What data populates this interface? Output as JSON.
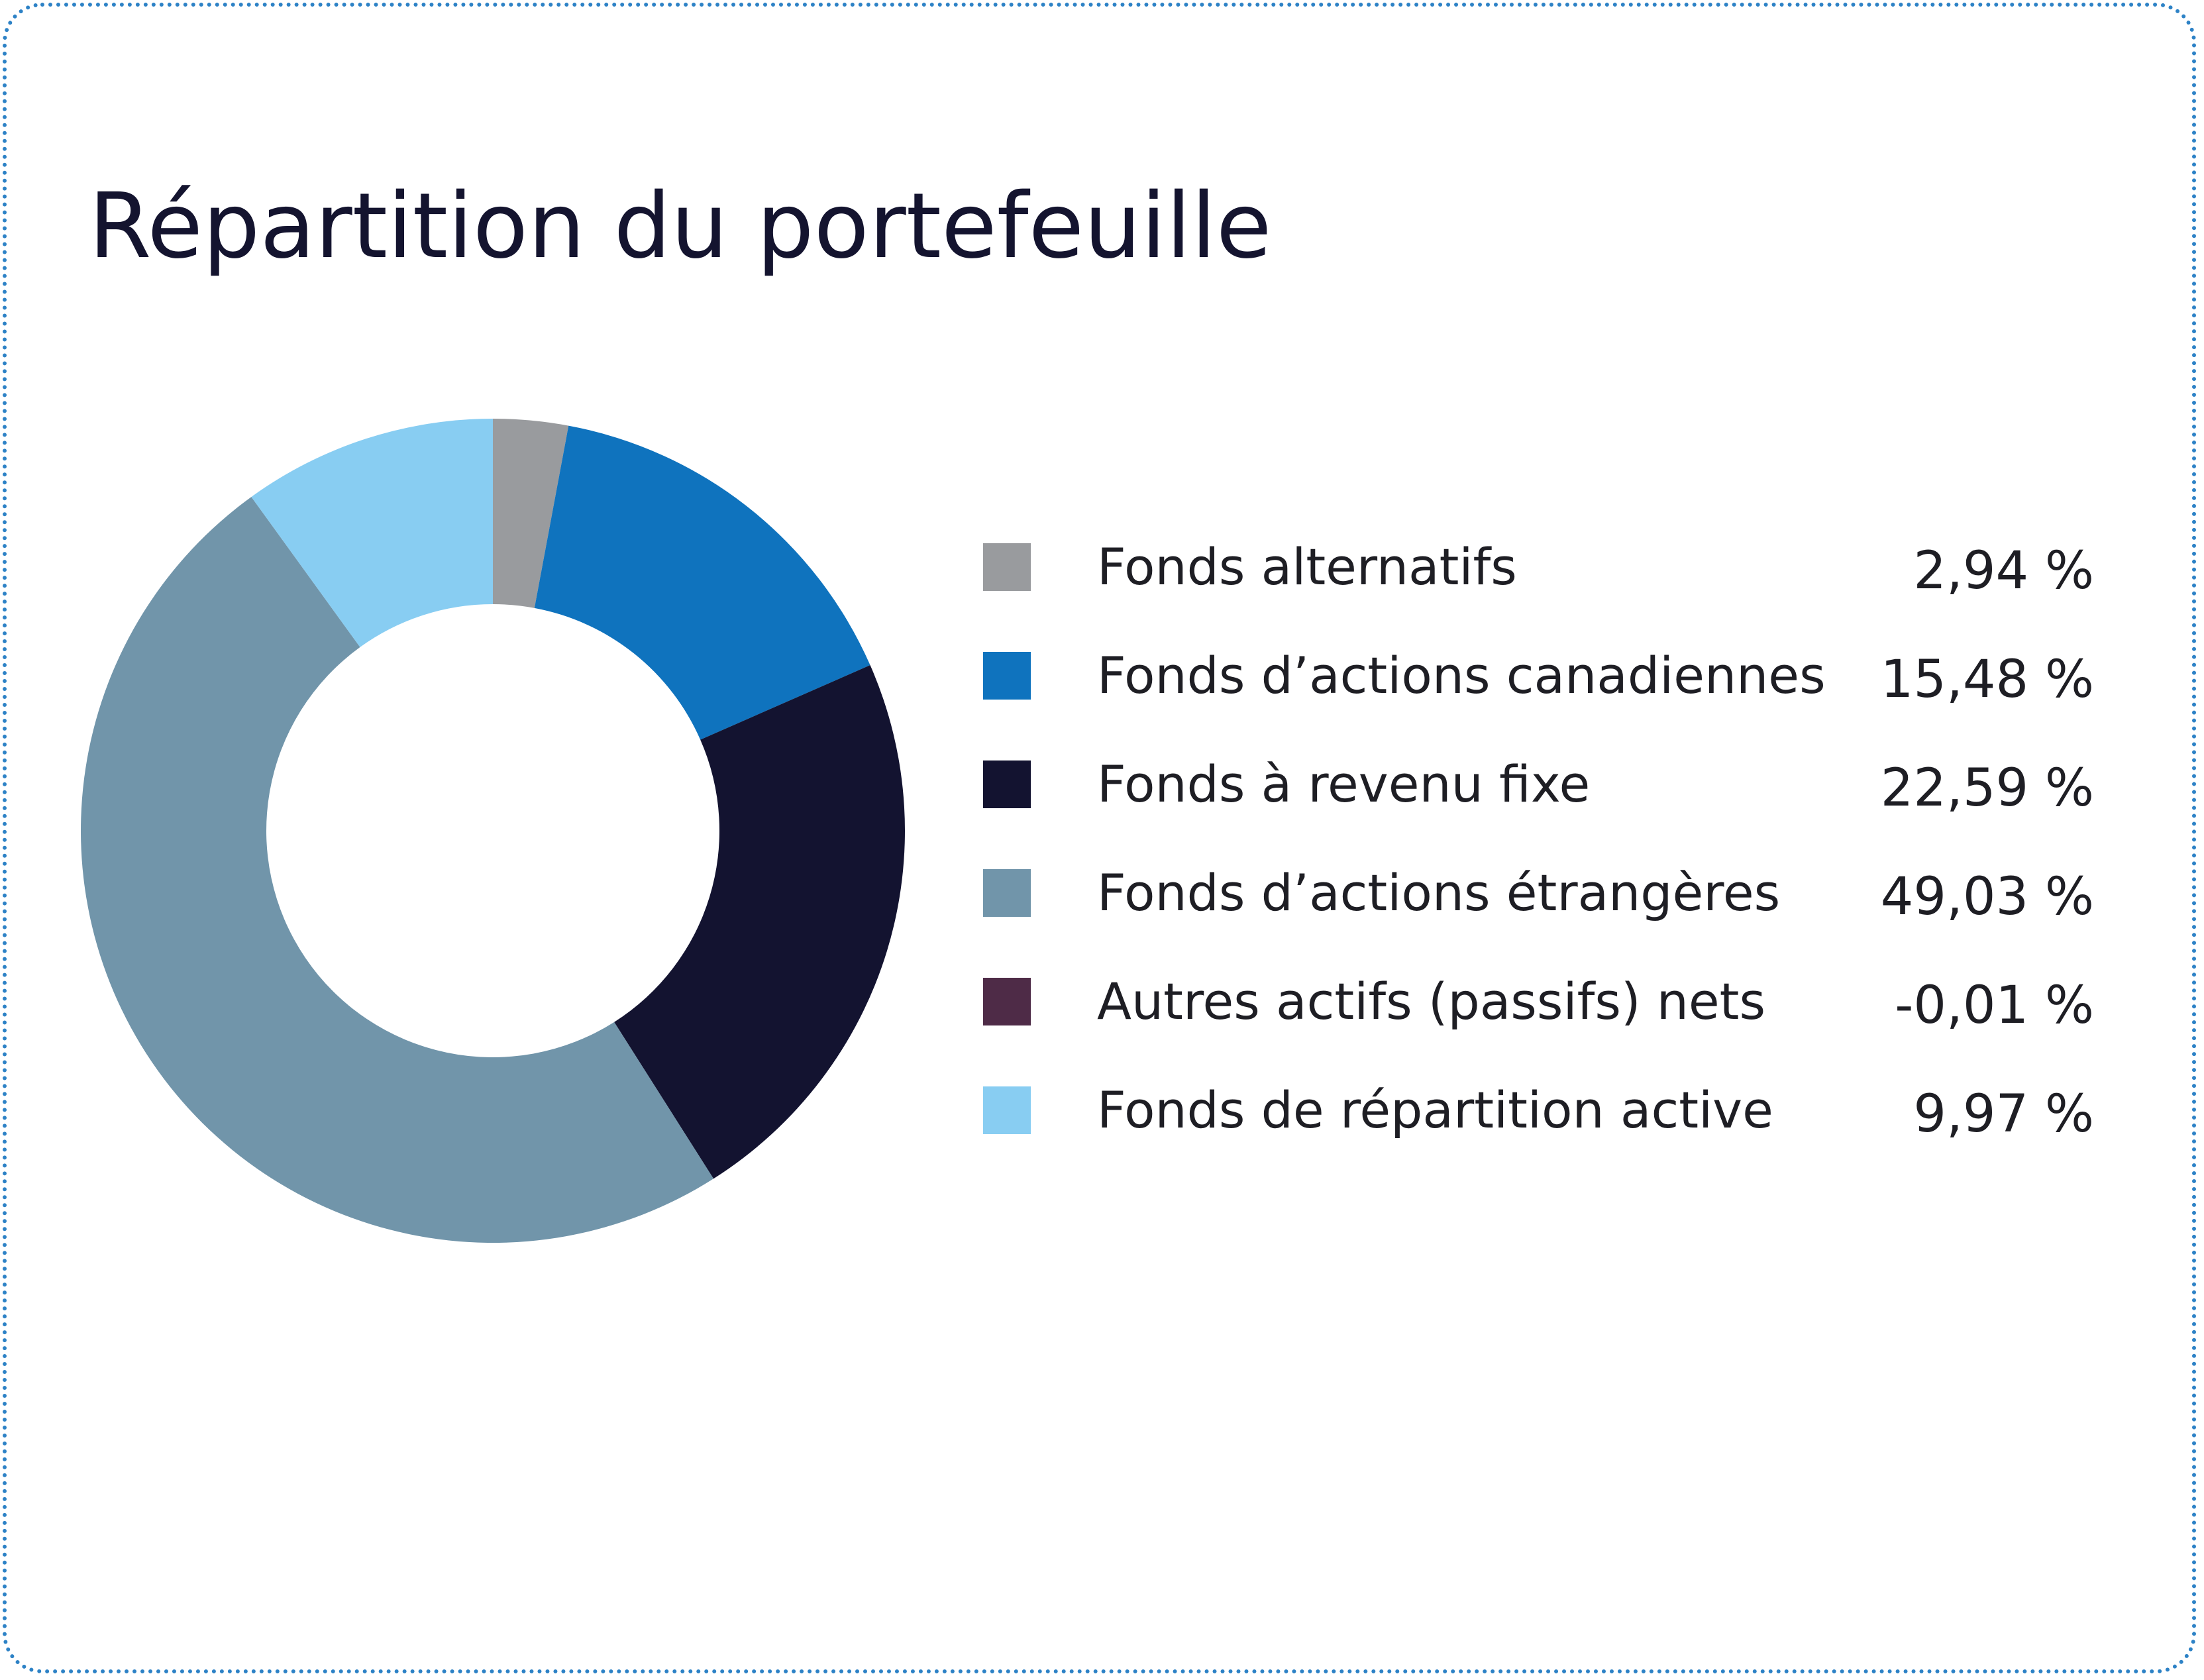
{
  "chart_data": {
    "type": "pie",
    "title": "Répartition du portefeuille",
    "donut": true,
    "legend_position": "right",
    "categories": [
      "Fonds alternatifs",
      "Fonds d’actions canadiennes",
      "Fonds à revenu fixe",
      "Fonds d’actions étrangères",
      "Autres actifs (passifs) nets",
      "Fonds de répartition active"
    ],
    "values": [
      2.94,
      15.48,
      22.59,
      49.03,
      -0.01,
      9.97
    ],
    "value_labels": [
      "2,94 %",
      "15,48 %",
      "22,59 %",
      "49,03 %",
      "-0,01 %",
      "9,97 %"
    ],
    "colors": [
      "#999b9e",
      "#0f73be",
      "#131330",
      "#7195aa",
      "#4e2b47",
      "#88cdf2"
    ]
  }
}
